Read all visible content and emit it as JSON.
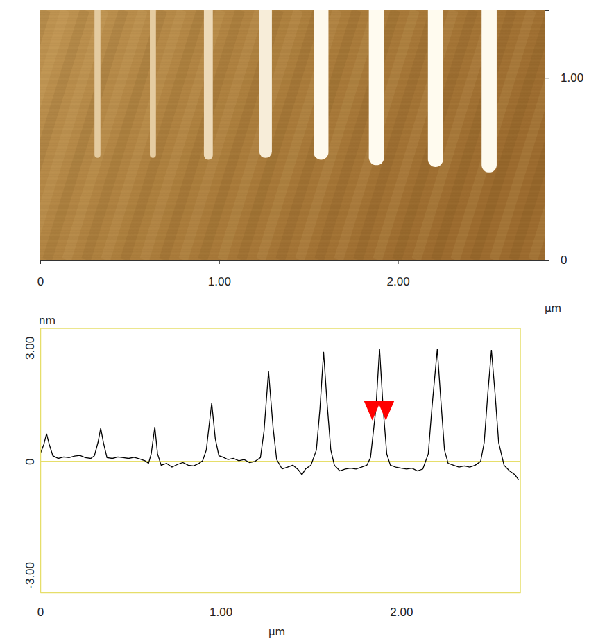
{
  "chart_data": [
    {
      "type": "image",
      "x_label": "µm",
      "xlim": [
        0,
        2.82
      ],
      "ylim": [
        0,
        1.37
      ],
      "xticks": [
        0,
        {
          "value": 1,
          "label": "1.00"
        },
        {
          "value": 2,
          "label": "2.00"
        }
      ],
      "yticks": [
        0,
        {
          "value": 1,
          "label": "1.00"
        }
      ],
      "features": {
        "x": [
          0.32,
          0.63,
          0.94,
          1.26,
          1.57,
          1.88,
          2.21,
          2.51
        ],
        "y_start": [
          0.56,
          0.56,
          0.55,
          0.56,
          0.55,
          0.52,
          0.51,
          0.48
        ],
        "heights": [
          0.88,
          0.91,
          1.54,
          2.38,
          2.89,
          2.98,
          2.96,
          2.94
        ]
      }
    },
    {
      "type": "line",
      "x_label": "µm",
      "y_label": "nm",
      "xlim": [
        0,
        2.66
      ],
      "ylim": [
        -3.46,
        3.51
      ],
      "xticks": [
        0,
        {
          "value": 1,
          "label": "1.00"
        },
        {
          "value": 2,
          "label": "2.00"
        }
      ],
      "yticks": [
        {
          "value": -3,
          "label": "-3.00"
        },
        0,
        {
          "value": 3,
          "label": "3.00"
        }
      ],
      "baseline": 0,
      "color": "#000000",
      "x": [
        0.0,
        0.02,
        0.035,
        0.05,
        0.07,
        0.1,
        0.13,
        0.16,
        0.19,
        0.22,
        0.25,
        0.28,
        0.3,
        0.32,
        0.335,
        0.35,
        0.37,
        0.4,
        0.43,
        0.46,
        0.49,
        0.52,
        0.55,
        0.58,
        0.6,
        0.615,
        0.635,
        0.65,
        0.67,
        0.7,
        0.73,
        0.76,
        0.79,
        0.82,
        0.85,
        0.88,
        0.9,
        0.92,
        0.95,
        0.97,
        0.99,
        1.01,
        1.04,
        1.07,
        1.1,
        1.13,
        1.16,
        1.19,
        1.22,
        1.24,
        1.265,
        1.29,
        1.31,
        1.34,
        1.37,
        1.4,
        1.43,
        1.45,
        1.47,
        1.5,
        1.53,
        1.55,
        1.57,
        1.59,
        1.61,
        1.63,
        1.66,
        1.69,
        1.72,
        1.75,
        1.78,
        1.81,
        1.83,
        1.86,
        1.88,
        1.9,
        1.92,
        1.94,
        1.97,
        2.0,
        2.03,
        2.06,
        2.09,
        2.12,
        2.15,
        2.17,
        2.2,
        2.22,
        2.24,
        2.26,
        2.29,
        2.32,
        2.35,
        2.38,
        2.41,
        2.44,
        2.46,
        2.48,
        2.5,
        2.52,
        2.54,
        2.57,
        2.6,
        2.63,
        2.65
      ],
      "values": [
        0.2,
        0.45,
        0.73,
        0.45,
        0.15,
        0.08,
        0.12,
        0.1,
        0.14,
        0.16,
        0.1,
        0.08,
        0.15,
        0.5,
        0.88,
        0.5,
        0.1,
        0.08,
        0.12,
        0.1,
        0.08,
        0.11,
        0.07,
        0.02,
        -0.05,
        0.2,
        0.91,
        0.2,
        -0.1,
        -0.05,
        -0.15,
        -0.08,
        -0.03,
        -0.1,
        -0.12,
        -0.05,
        0.02,
        0.3,
        1.54,
        0.6,
        0.15,
        0.12,
        0.05,
        0.08,
        0.02,
        0.05,
        -0.03,
        0.0,
        0.1,
        0.8,
        2.38,
        0.9,
        0.05,
        -0.2,
        -0.15,
        -0.1,
        -0.22,
        -0.35,
        -0.2,
        -0.1,
        0.3,
        1.4,
        2.89,
        1.5,
        0.3,
        -0.1,
        -0.25,
        -0.2,
        -0.18,
        -0.2,
        -0.15,
        -0.1,
        0.1,
        1.4,
        2.98,
        1.4,
        0.2,
        -0.1,
        -0.15,
        -0.18,
        -0.2,
        -0.18,
        -0.25,
        -0.2,
        0.2,
        1.4,
        2.96,
        1.6,
        0.3,
        -0.05,
        -0.1,
        -0.15,
        -0.12,
        -0.15,
        -0.1,
        0.0,
        0.5,
        1.8,
        2.94,
        1.8,
        0.5,
        -0.1,
        -0.25,
        -0.35,
        -0.48
      ],
      "cursors": {
        "x": [
          1.84,
          1.915
        ],
        "values": [
          1.43,
          1.43
        ],
        "color": "#ff0000",
        "marker": "triangle-down"
      }
    }
  ]
}
